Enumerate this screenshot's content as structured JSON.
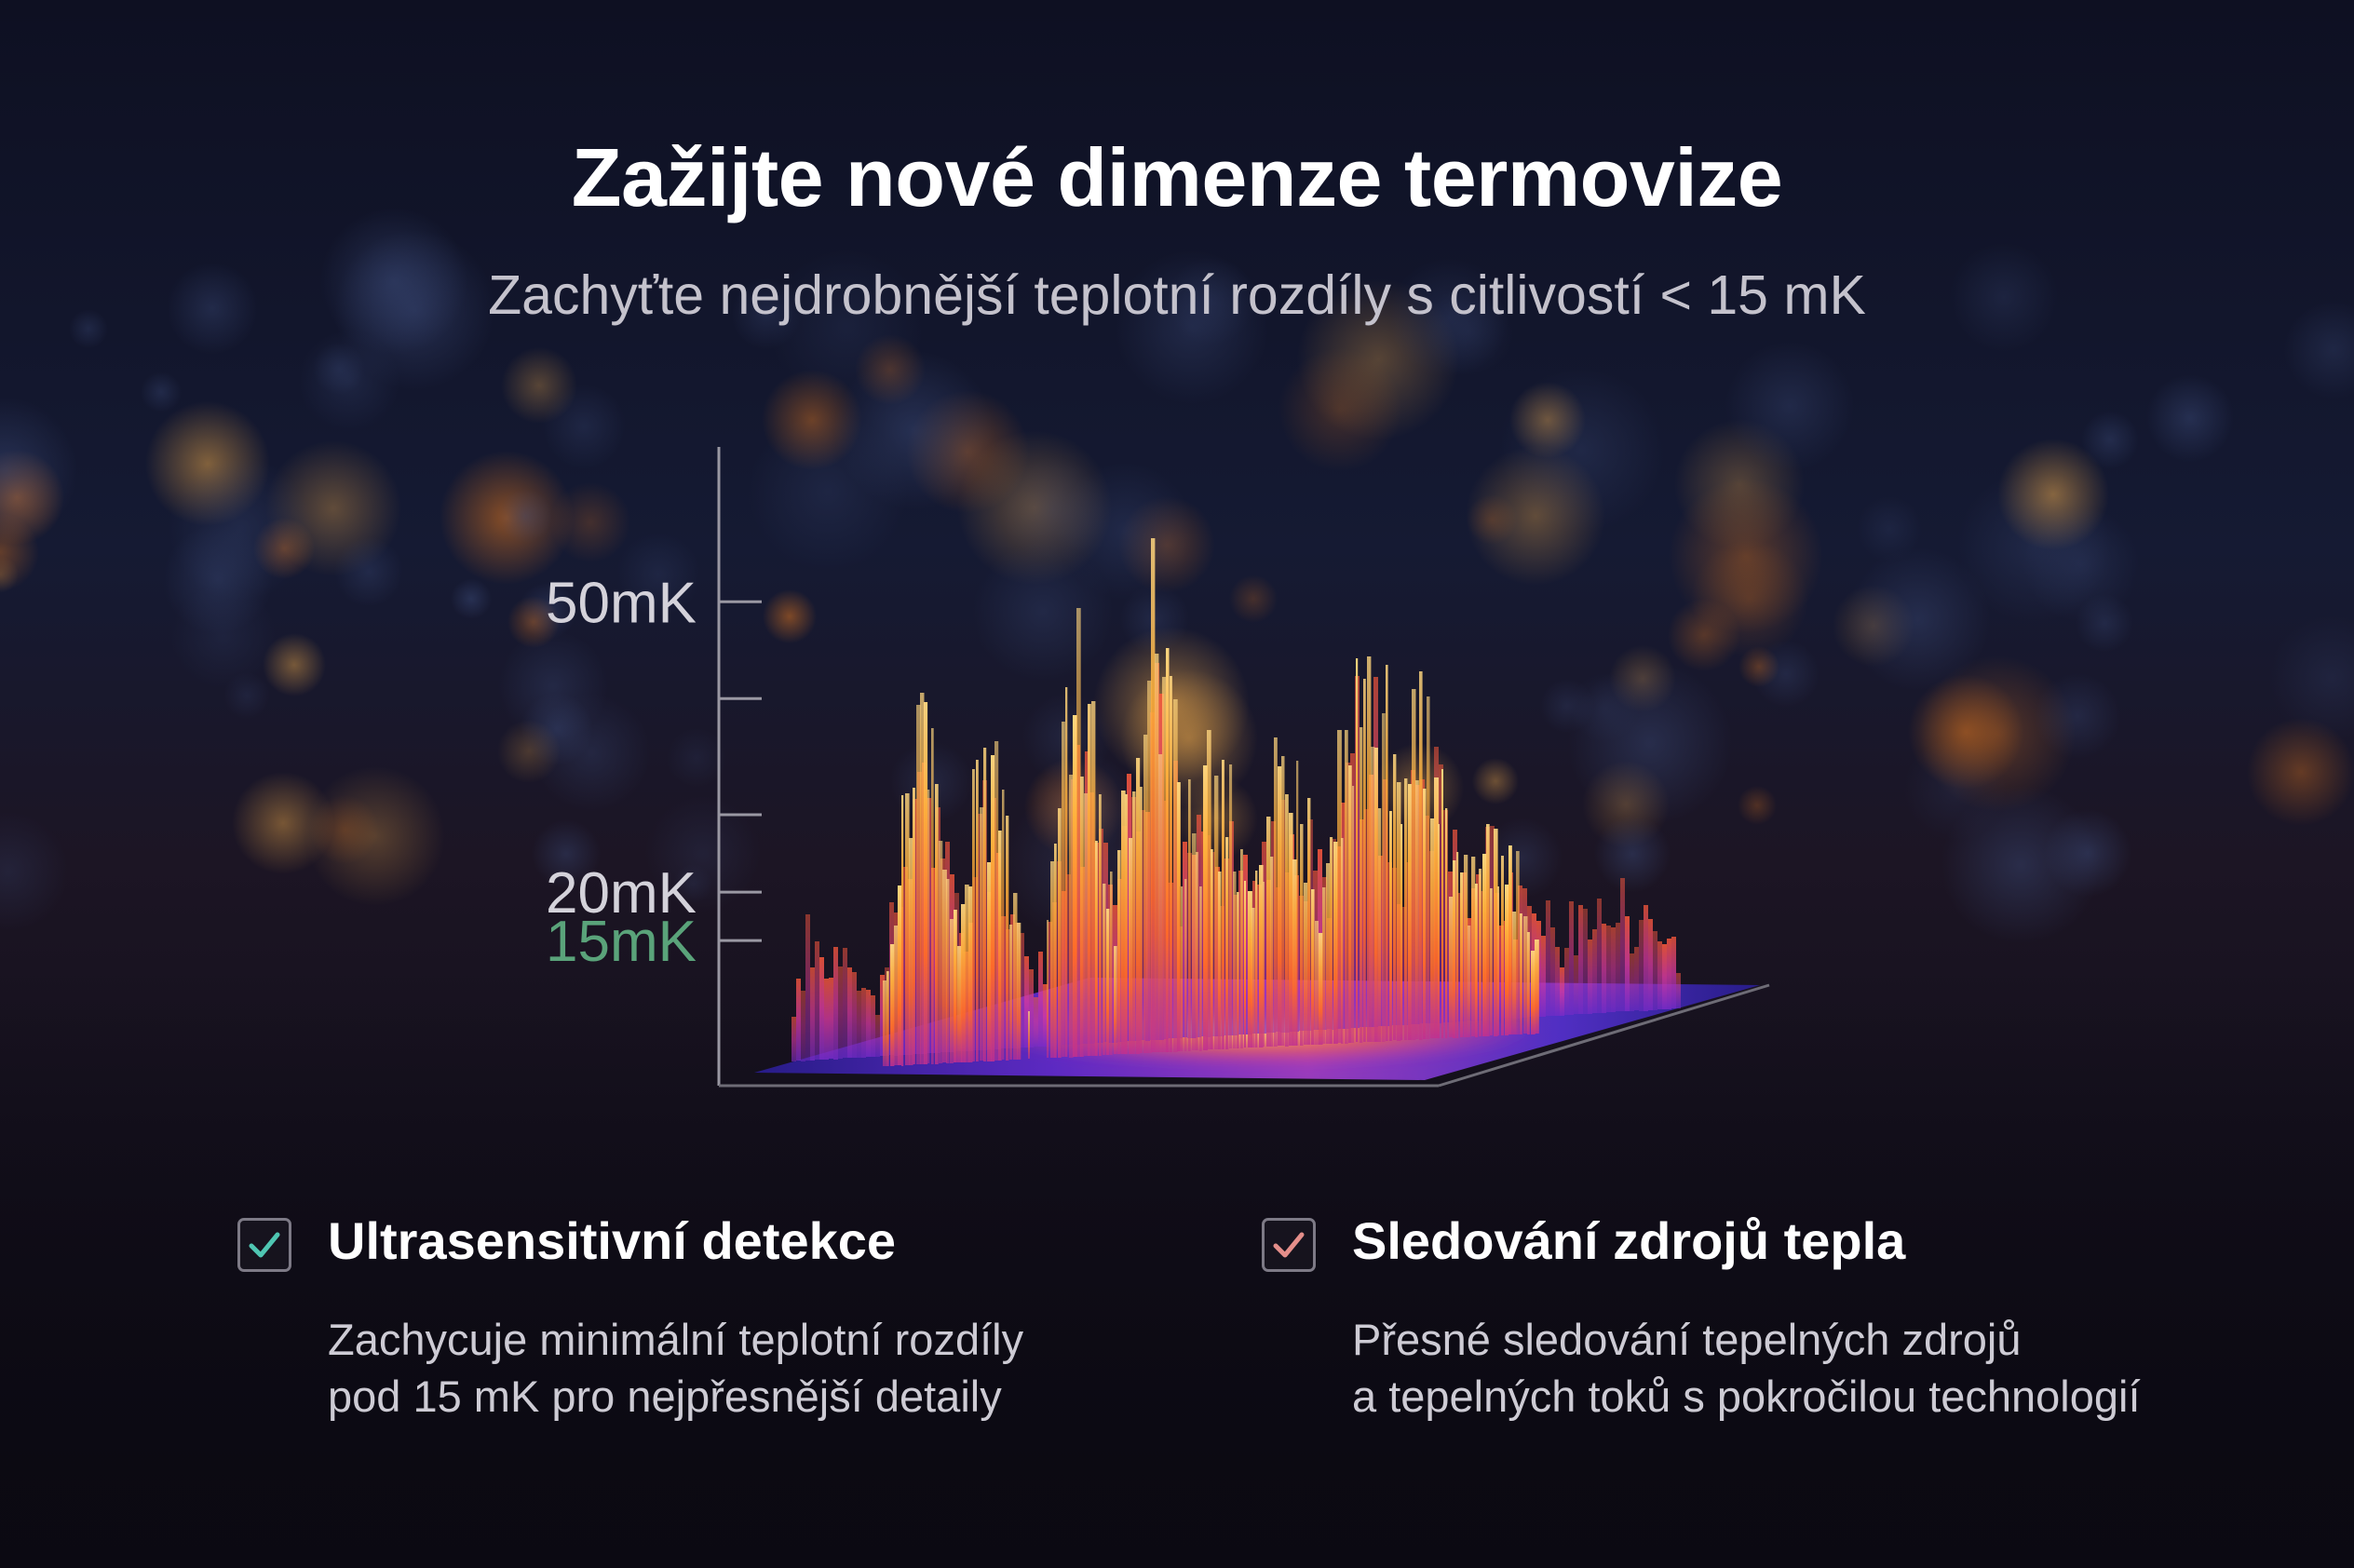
{
  "header": {
    "title": "Zažijte nové dimenze termovize",
    "subtitle": "Zachyťte nejdrobnější teplotní rozdíly s citlivostí < 15 mK"
  },
  "chart_data": {
    "type": "bar",
    "title": "",
    "xlabel": "",
    "ylabel": "",
    "ticks": [
      {
        "label": "50mK",
        "value": 50
      },
      {
        "label": "20mK",
        "value": 20
      },
      {
        "label": "15mK",
        "value": 15
      }
    ],
    "unlabeled_ticks": [
      40,
      28
    ],
    "ylim": [
      0,
      66
    ],
    "bars_from_script": "procedural thermal waveform",
    "highlight_color": "#5aa37a",
    "label_color": "#d4d2da"
  },
  "features": [
    {
      "title": "Ultrasensitivní detekce",
      "desc_line1": "Zachycuje minimální teplotní rozdíly",
      "desc_line2": "pod 15 mK pro nejpřesnější detaily",
      "check_color": "#4fc6b2"
    },
    {
      "title": "Sledování zdrojů tepla",
      "desc_line1": "Přesné sledování tepelných zdrojů",
      "desc_line2": "a tepelných toků s pokročilou technologií",
      "check_color": "#e48e8a"
    }
  ],
  "colors": {
    "background": "#0b0916",
    "bar_gold": "#ffb640",
    "bar_orange": "#ff7a1f",
    "bar_magenta": "#d93aa0",
    "plate_blue": "#4b2fd8"
  }
}
